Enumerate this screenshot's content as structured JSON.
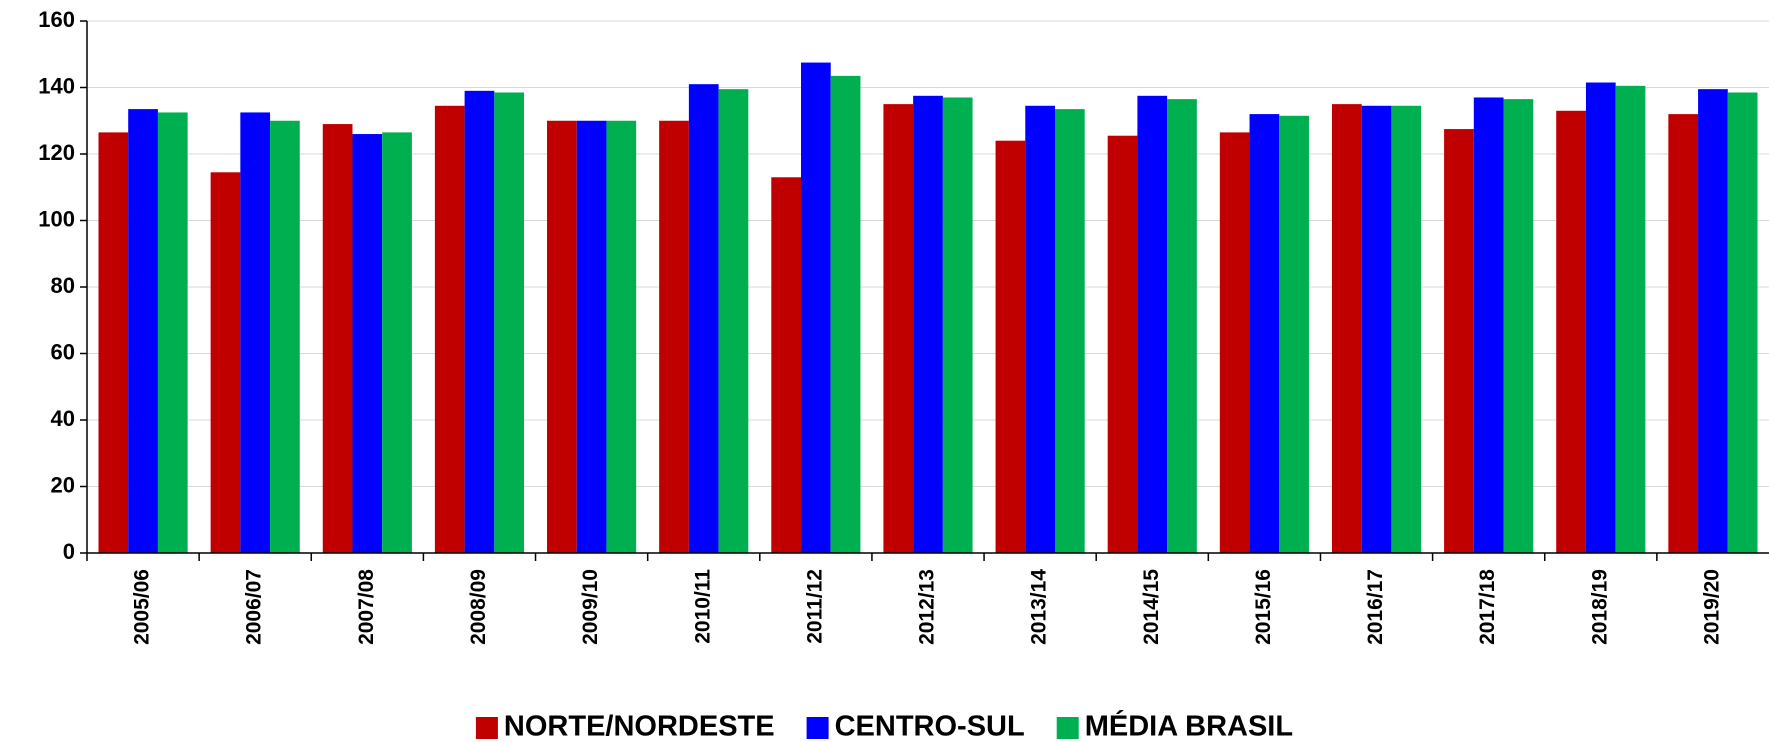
{
  "chart_data": {
    "type": "bar",
    "categories": [
      "2005/06",
      "2006/07",
      "2007/08",
      "2008/09",
      "2009/10",
      "2010/11",
      "2011/12",
      "2012/13",
      "2013/14",
      "2014/15",
      "2015/16",
      "2016/17",
      "2017/18",
      "2018/19",
      "2019/20"
    ],
    "series": [
      {
        "name": "NORTE/NORDESTE",
        "color": "#c00000",
        "values": [
          126.5,
          114.5,
          129,
          134.5,
          130,
          130,
          113,
          135,
          124,
          125.5,
          126.5,
          135,
          127.5,
          133,
          132
        ]
      },
      {
        "name": "CENTRO-SUL",
        "color": "#0000ff",
        "values": [
          133.5,
          132.5,
          126,
          139,
          130,
          141,
          147.5,
          137.5,
          134.5,
          137.5,
          132,
          134.5,
          137,
          141.5,
          139.5
        ]
      },
      {
        "name": "MÉDIA BRASIL",
        "color": "#00b050",
        "values": [
          132.5,
          130,
          126.5,
          138.5,
          130,
          139.5,
          143.5,
          137,
          133.5,
          136.5,
          131.5,
          134.5,
          136.5,
          140.5,
          138.5
        ]
      }
    ],
    "ylim": [
      0,
      160
    ],
    "yticks": [
      0,
      20,
      40,
      60,
      80,
      100,
      120,
      140,
      160
    ],
    "grid": true,
    "legend": "bottom"
  }
}
